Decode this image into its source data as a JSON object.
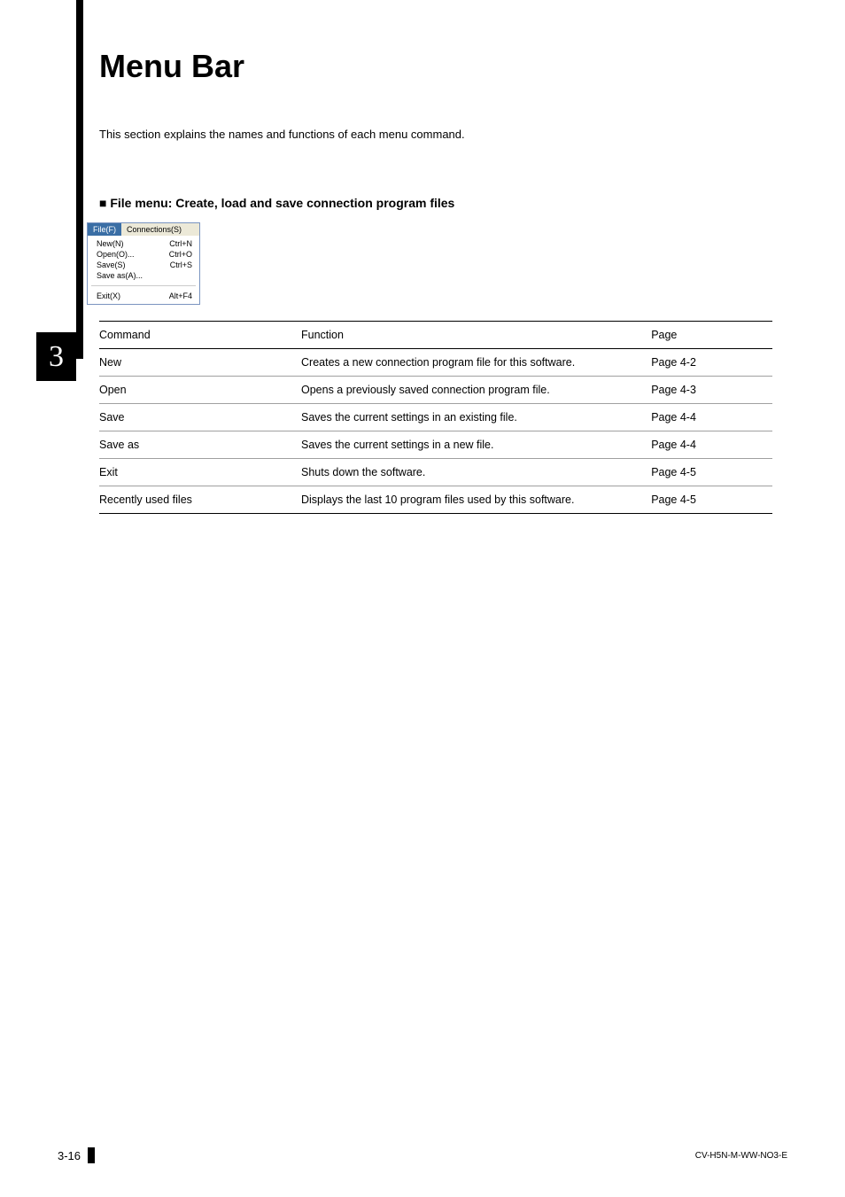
{
  "chapter": {
    "number": "3"
  },
  "page": {
    "title": "Menu Bar",
    "intro": "This section explains the names and functions of each menu command."
  },
  "section": {
    "heading": "■ File menu: Create, load and save connection program files"
  },
  "menu_screenshot": {
    "tabs": [
      {
        "label": "File(F)",
        "active": true
      },
      {
        "label": "Connections(S)",
        "active": false
      }
    ],
    "items": [
      {
        "label": "New(N)",
        "shortcut": "Ctrl+N"
      },
      {
        "label": "Open(O)...",
        "shortcut": "Ctrl+O"
      },
      {
        "label": "Save(S)",
        "shortcut": "Ctrl+S"
      },
      {
        "label": "Save as(A)...",
        "shortcut": ""
      }
    ],
    "items2": [
      {
        "label": "Exit(X)",
        "shortcut": "Alt+F4"
      }
    ],
    "colors": {
      "active_bg": "#3a6ea5",
      "inactive_bg": "#ece9d8",
      "border": "#7a94c0"
    }
  },
  "table": {
    "headers": {
      "command": "Command",
      "function": "Function",
      "page": "Page"
    },
    "rows": [
      {
        "command": "New",
        "function": "Creates a new connection program file for this software.",
        "page": "Page 4-2"
      },
      {
        "command": "Open",
        "function": "Opens a previously saved connection program file.",
        "page": "Page 4-3"
      },
      {
        "command": "Save",
        "function": "Saves the current settings in an existing file.",
        "page": "Page 4-4"
      },
      {
        "command": "Save as",
        "function": "Saves the current settings in a new file.",
        "page": "Page 4-4"
      },
      {
        "command": "Exit",
        "function": "Shuts down the software.",
        "page": "Page 4-5"
      },
      {
        "command": "Recently used files",
        "function": "Displays the last 10 program files used by this software.",
        "page": "Page 4-5"
      }
    ]
  },
  "footer": {
    "page_number": "3-16",
    "doc_code": "CV-H5N-M-WW-NO3-E"
  },
  "styling": {
    "title_fontsize": 36,
    "body_fontsize": 13,
    "table_fontsize": 12.5,
    "sidebar_color": "#000000",
    "chapter_tab_bg": "#000000",
    "chapter_tab_fg": "#ffffff",
    "background": "#ffffff",
    "table_row_border": "#a0a0a0",
    "table_outer_border": "#000000"
  }
}
